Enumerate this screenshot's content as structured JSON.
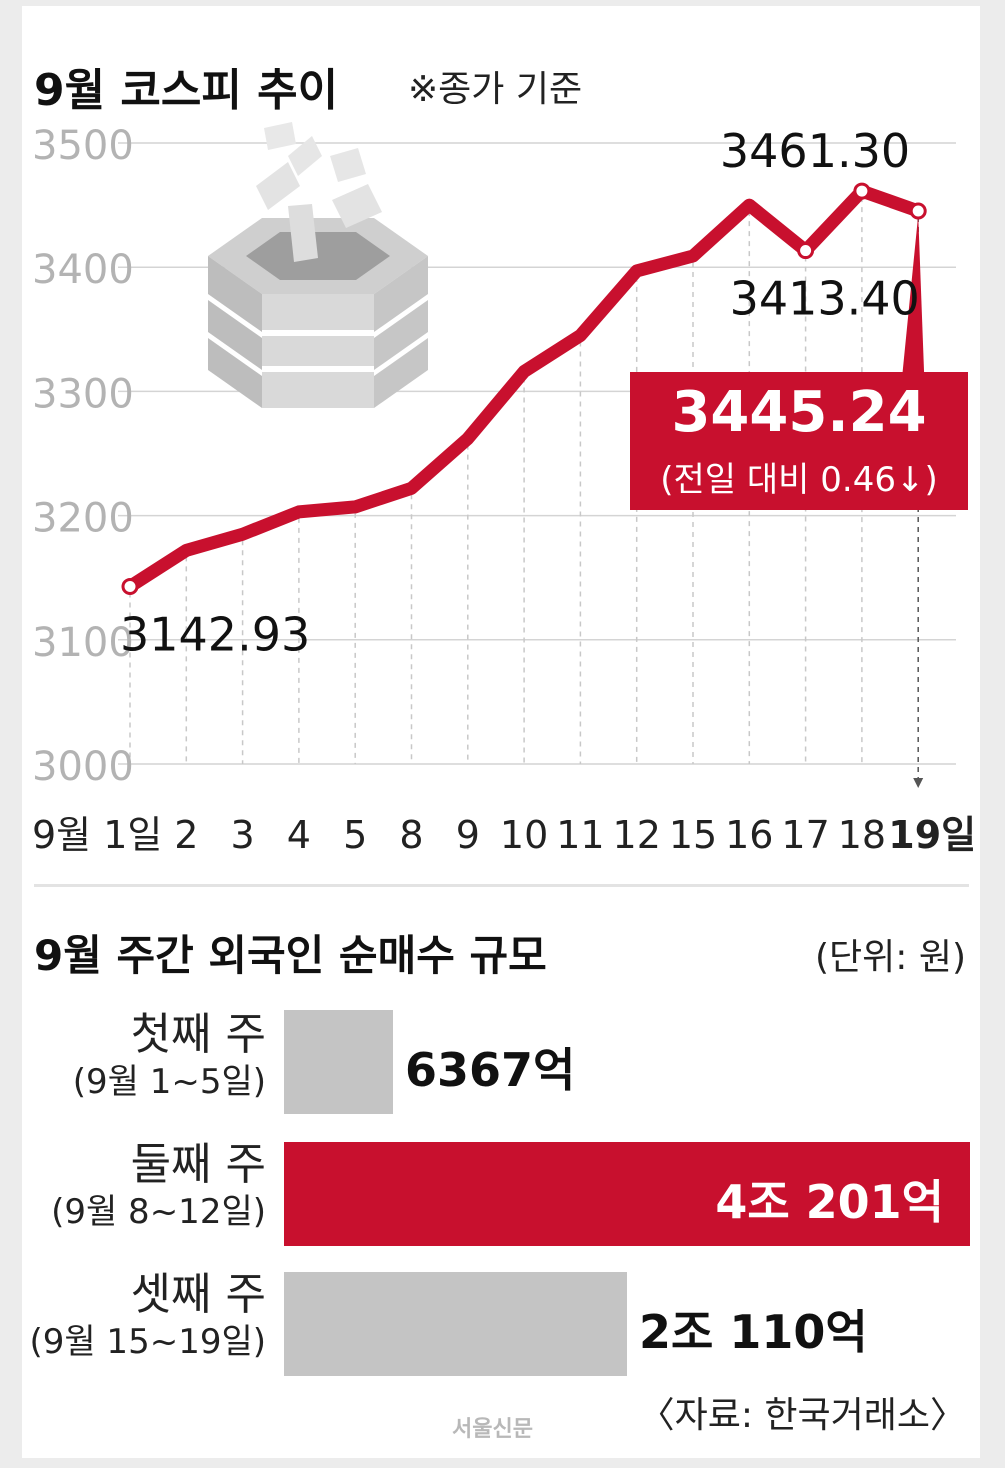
{
  "line_section": {
    "title": "9월 코스피 추이",
    "note": "※종가 기준",
    "callout": {
      "value": "3445.24",
      "change": "(전일 대비 0.46↓)"
    }
  },
  "bar_section": {
    "title": "9월 주간 외국인 순매수 규모",
    "unit": "(단위: 원)",
    "rows": [
      {
        "label": "첫째 주",
        "period": "(9월 1~5일)",
        "value_text": "6367억"
      },
      {
        "label": "둘째 주",
        "period": "(9월 8~12일)",
        "value_text": "4조 201억"
      },
      {
        "label": "셋째 주",
        "period": "(9월 15~19일)",
        "value_text": "2조 110억"
      }
    ]
  },
  "source": "〈자료: 한국거래소〉",
  "logo": "서울신문",
  "colors": {
    "accent": "#c8102e",
    "bar_gray": "#c4c4c4",
    "gridline": "#d4d4d4",
    "axis_text": "#b3b3b3"
  },
  "icon": "money-box-illustration",
  "chart_data": [
    {
      "type": "line",
      "title": "9월 코스피 추이",
      "x": [
        "9월 1일",
        "2",
        "3",
        "4",
        "5",
        "8",
        "9",
        "10",
        "11",
        "12",
        "15",
        "16",
        "17",
        "18",
        "19일"
      ],
      "series": [
        {
          "values": [
            3142.93,
            3172,
            3185,
            3203,
            3207,
            3222,
            3262,
            3316,
            3345,
            3397,
            3409,
            3450,
            3413.4,
            3461.3,
            3445.24
          ]
        }
      ],
      "yticks": [
        3000,
        3100,
        3200,
        3300,
        3400,
        3500
      ],
      "ylim": [
        3000,
        3500
      ],
      "grid": true,
      "data_labels": [
        {
          "index": 0,
          "text": "3142.93"
        },
        {
          "index": 12,
          "text": "3413.40"
        },
        {
          "index": 13,
          "text": "3461.30"
        }
      ]
    },
    {
      "type": "bar",
      "title": "9월 주간 외국인 순매수 규모",
      "categories": [
        "첫째 주",
        "둘째 주",
        "셋째 주"
      ],
      "values": [
        6367,
        40201,
        20110
      ],
      "unit": "억원"
    }
  ]
}
